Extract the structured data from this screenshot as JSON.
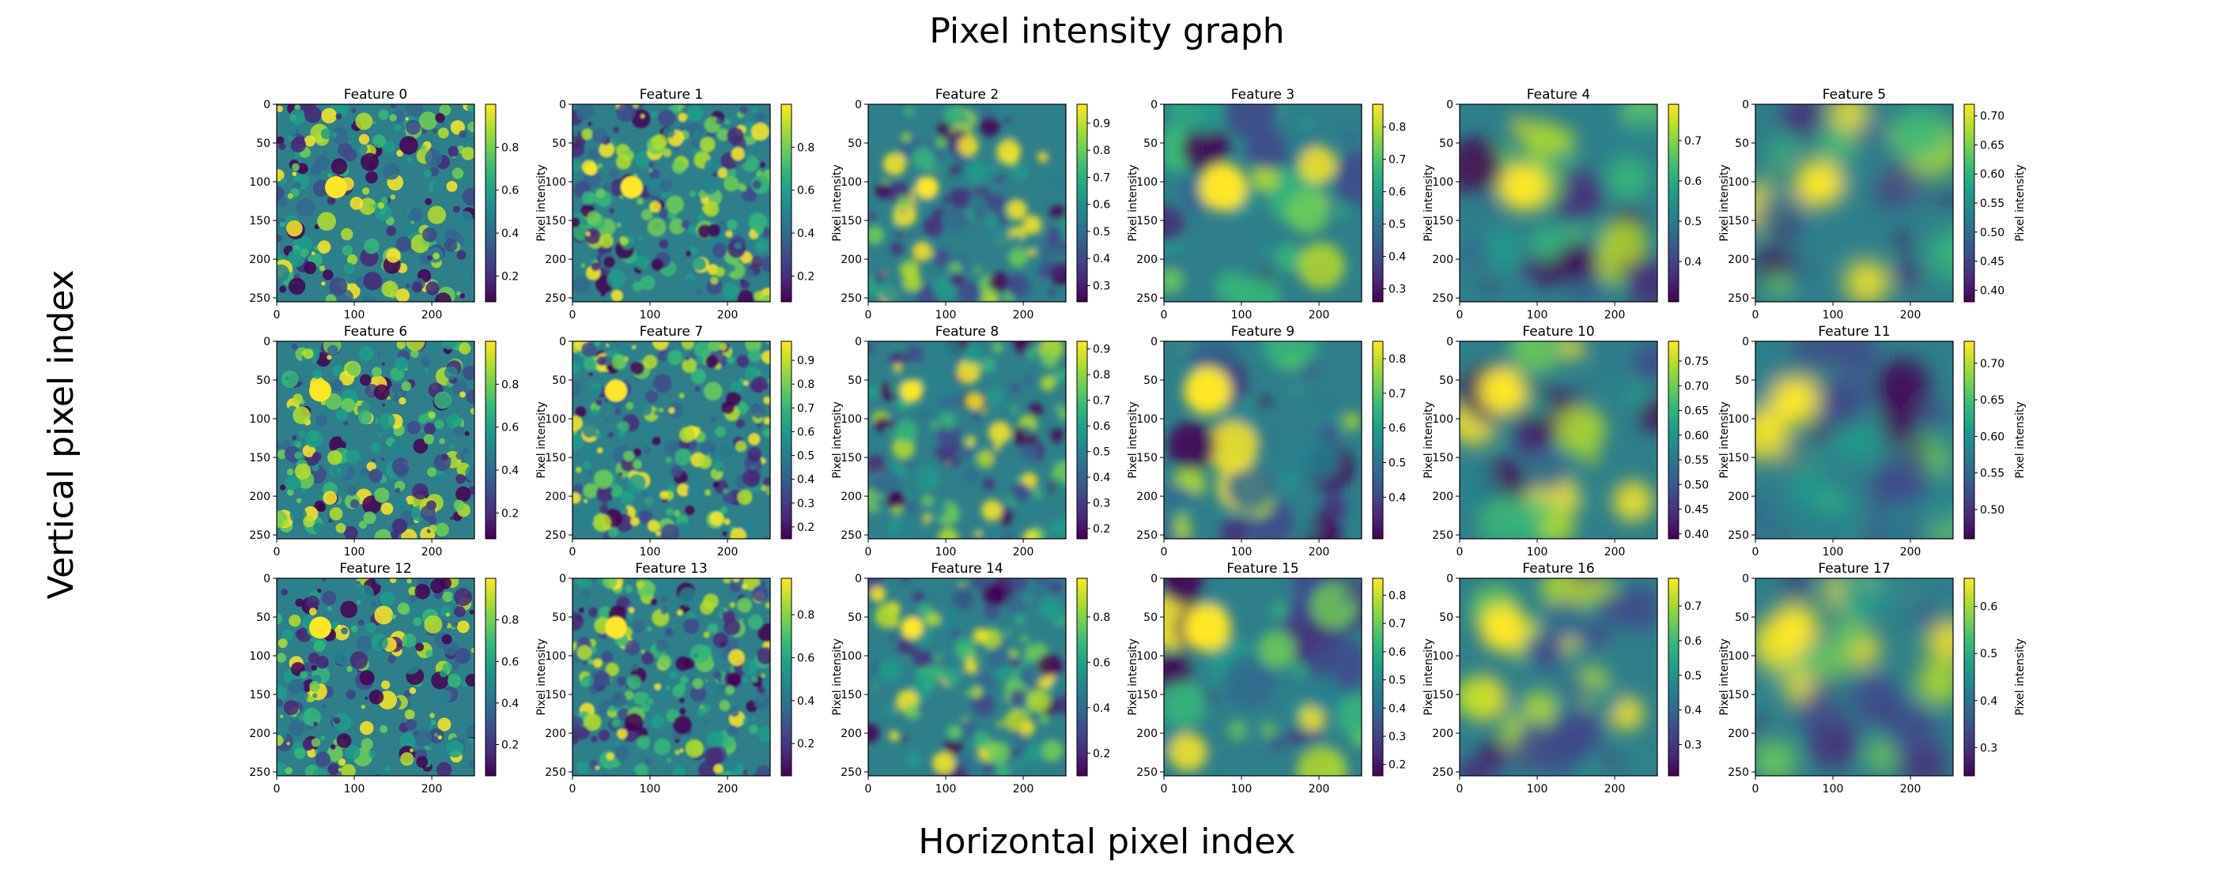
{
  "figure": {
    "title": "Pixel intensity graph",
    "xlabel": "Horizontal pixel index",
    "ylabel": "Vertical pixel index"
  },
  "chart_data": {
    "type": "heatmap",
    "colormap": "viridis",
    "grid": false,
    "colorbar_label": "Pixel intensity",
    "x_ticks": [
      0,
      100,
      200
    ],
    "y_ticks": [
      0,
      50,
      100,
      150,
      200,
      250
    ],
    "xlim": [
      0,
      255
    ],
    "ylim": [
      255,
      0
    ],
    "panels": [
      {
        "title": "Feature 0",
        "clim": [
          0.08,
          1.0
        ],
        "cticks": [
          0.2,
          0.4,
          0.6,
          0.8
        ],
        "blur": 0.0,
        "bright": [
          [
            0.3,
            0.42
          ]
        ]
      },
      {
        "title": "Feature 1",
        "clim": [
          0.08,
          1.0
        ],
        "cticks": [
          0.2,
          0.4,
          0.6,
          0.8
        ],
        "blur": 0.1,
        "bright": [
          [
            0.3,
            0.42
          ]
        ]
      },
      {
        "title": "Feature 2",
        "clim": [
          0.24,
          0.97
        ],
        "cticks": [
          0.3,
          0.4,
          0.5,
          0.6,
          0.7,
          0.8,
          0.9
        ],
        "blur": 0.3,
        "bright": [
          [
            0.3,
            0.42
          ]
        ]
      },
      {
        "title": "Feature 3",
        "clim": [
          0.26,
          0.87
        ],
        "cticks": [
          0.3,
          0.4,
          0.5,
          0.6,
          0.7,
          0.8
        ],
        "blur": 0.55,
        "bright": [
          [
            0.3,
            0.42
          ]
        ]
      },
      {
        "title": "Feature 4",
        "clim": [
          0.3,
          0.79
        ],
        "cticks": [
          0.4,
          0.5,
          0.6,
          0.7
        ],
        "blur": 0.8,
        "bright": [
          [
            0.32,
            0.42
          ]
        ]
      },
      {
        "title": "Feature 5",
        "clim": [
          0.38,
          0.72
        ],
        "cticks": [
          0.4,
          0.45,
          0.5,
          0.55,
          0.6,
          0.65,
          0.7
        ],
        "blur": 0.95,
        "bright": [
          [
            0.32,
            0.4
          ]
        ]
      },
      {
        "title": "Feature 6",
        "clim": [
          0.08,
          1.0
        ],
        "cticks": [
          0.2,
          0.4,
          0.6,
          0.8
        ],
        "blur": 0.0,
        "bright": [
          [
            0.22,
            0.25
          ]
        ]
      },
      {
        "title": "Feature 7",
        "clim": [
          0.15,
          0.98
        ],
        "cticks": [
          0.2,
          0.3,
          0.4,
          0.5,
          0.6,
          0.7,
          0.8,
          0.9
        ],
        "blur": 0.1,
        "bright": [
          [
            0.22,
            0.25
          ]
        ]
      },
      {
        "title": "Feature 8",
        "clim": [
          0.16,
          0.93
        ],
        "cticks": [
          0.2,
          0.3,
          0.4,
          0.5,
          0.6,
          0.7,
          0.8,
          0.9
        ],
        "blur": 0.3,
        "bright": [
          [
            0.22,
            0.25
          ]
        ]
      },
      {
        "title": "Feature 9",
        "clim": [
          0.28,
          0.85
        ],
        "cticks": [
          0.4,
          0.5,
          0.6,
          0.7,
          0.8
        ],
        "blur": 0.55,
        "bright": [
          [
            0.22,
            0.25
          ]
        ]
      },
      {
        "title": "Feature 10",
        "clim": [
          0.39,
          0.79
        ],
        "cticks": [
          0.4,
          0.45,
          0.5,
          0.55,
          0.6,
          0.65,
          0.7,
          0.75
        ],
        "blur": 0.8,
        "bright": [
          [
            0.22,
            0.25
          ]
        ]
      },
      {
        "title": "Feature 11",
        "clim": [
          0.46,
          0.73
        ],
        "cticks": [
          0.5,
          0.55,
          0.6,
          0.65,
          0.7
        ],
        "blur": 0.95,
        "bright": [
          [
            0.2,
            0.3
          ]
        ]
      },
      {
        "title": "Feature 12",
        "clim": [
          0.05,
          1.0
        ],
        "cticks": [
          0.2,
          0.4,
          0.6,
          0.8
        ],
        "blur": 0.0,
        "bright": [
          [
            0.22,
            0.25
          ]
        ]
      },
      {
        "title": "Feature 13",
        "clim": [
          0.05,
          0.97
        ],
        "cticks": [
          0.2,
          0.4,
          0.6,
          0.8
        ],
        "blur": 0.1,
        "bright": [
          [
            0.22,
            0.25
          ]
        ]
      },
      {
        "title": "Feature 14",
        "clim": [
          0.1,
          0.97
        ],
        "cticks": [
          0.2,
          0.4,
          0.6,
          0.8
        ],
        "blur": 0.3,
        "bright": [
          [
            0.22,
            0.25
          ]
        ]
      },
      {
        "title": "Feature 15",
        "clim": [
          0.16,
          0.86
        ],
        "cticks": [
          0.2,
          0.3,
          0.4,
          0.5,
          0.6,
          0.7,
          0.8
        ],
        "blur": 0.55,
        "bright": [
          [
            0.22,
            0.25
          ]
        ]
      },
      {
        "title": "Feature 16",
        "clim": [
          0.21,
          0.78
        ],
        "cticks": [
          0.3,
          0.4,
          0.5,
          0.6,
          0.7
        ],
        "blur": 0.8,
        "bright": [
          [
            0.22,
            0.25
          ]
        ]
      },
      {
        "title": "Feature 17",
        "clim": [
          0.24,
          0.66
        ],
        "cticks": [
          0.3,
          0.4,
          0.5,
          0.6
        ],
        "blur": 0.95,
        "bright": [
          [
            0.2,
            0.25
          ]
        ]
      }
    ]
  }
}
